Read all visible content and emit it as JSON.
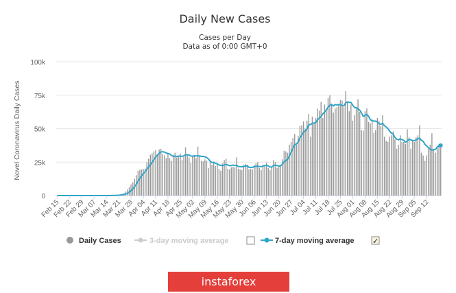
{
  "chart_data": {
    "type": "bar",
    "title": "Daily New Cases",
    "subtitle_line1": "Cases per Day",
    "subtitle_line2": "Data as of 0:00 GMT+0",
    "ylabel": "Novel Coronavirus Daily Cases",
    "xlabel": "",
    "ylim": [
      0,
      100000
    ],
    "y_ticks": [
      0,
      25000,
      50000,
      75000,
      100000
    ],
    "y_tick_labels": [
      "0",
      "25k",
      "50k",
      "75k",
      "100k"
    ],
    "x_tick_labels": [
      "Feb 15",
      "Feb 22",
      "Feb 29",
      "Mar 07",
      "Mar 14",
      "Mar 21",
      "Mar 28",
      "Apr 04",
      "Apr 11",
      "Apr 18",
      "Apr 25",
      "May 02",
      "May 09",
      "May 16",
      "May 23",
      "May 30",
      "Jun 06",
      "Jun 13",
      "Jun 20",
      "Jun 27",
      "Jul 04",
      "Jul 11",
      "Jul 18",
      "Jul 25",
      "Aug 01",
      "Aug 08",
      "Aug 15",
      "Aug 22",
      "Aug 29",
      "Sep 05",
      "Sep 12"
    ],
    "start_label": "Feb 15",
    "days_between_ticks": 7,
    "grid": true,
    "legend_position": "bottom",
    "series": [
      {
        "name": "Daily Cases",
        "kind": "bar",
        "color": "#999999",
        "values": [
          0,
          0,
          0,
          0,
          0,
          0,
          0,
          0,
          0,
          0,
          0,
          0,
          0,
          0,
          0,
          0,
          0,
          0,
          0,
          0,
          0,
          0,
          0,
          0,
          0,
          0,
          0,
          0,
          0,
          100,
          100,
          200,
          200,
          300,
          400,
          600,
          900,
          1200,
          1700,
          3000,
          4500,
          6200,
          8300,
          9900,
          12500,
          15200,
          18500,
          19200,
          19500,
          19900,
          20200,
          25000,
          27500,
          30500,
          31500,
          33000,
          34000,
          30000,
          34500,
          35000,
          31000,
          30000,
          28000,
          31500,
          28000,
          26000,
          30500,
          32000,
          28500,
          30000,
          31500,
          26500,
          29000,
          36000,
          31000,
          28500,
          24500,
          30000,
          29500,
          28000,
          36500,
          30000,
          26000,
          25500,
          27000,
          26000,
          20500,
          25000,
          23000,
          25500,
          22000,
          24000,
          20000,
          18500,
          24000,
          26500,
          27500,
          20000,
          19500,
          21000,
          21500,
          21000,
          28500,
          20000,
          19500,
          19000,
          23000,
          23500,
          23000,
          19500,
          20000,
          19500,
          23000,
          24000,
          25000,
          20500,
          19000,
          23000,
          22500,
          24500,
          20500,
          19000,
          21000,
          26500,
          25000,
          20500,
          21500,
          22500,
          27000,
          33500,
          33000,
          32000,
          38000,
          40000,
          43000,
          46000,
          38000,
          44500,
          52000,
          52500,
          55500,
          50000,
          56000,
          61000,
          44000,
          59000,
          54000,
          58000,
          65000,
          63500,
          70000,
          58000,
          68000,
          65000,
          73000,
          75000,
          68000,
          62000,
          65000,
          66000,
          67500,
          71500,
          71000,
          66000,
          78000,
          70000,
          63000,
          68000,
          56000,
          60000,
          65000,
          72000,
          62500,
          49000,
          48500,
          63000,
          65000,
          55000,
          54000,
          57000,
          47000,
          49000,
          58000,
          55500,
          52000,
          60000,
          44000,
          41000,
          40000,
          44000,
          45000,
          48000,
          42000,
          35000,
          38000,
          45000,
          40000,
          40000,
          38500,
          49500,
          43500,
          35000,
          41000,
          40000,
          43500,
          45000,
          52500,
          32000,
          30000,
          26000,
          30000,
          35000,
          38000,
          46500,
          34500,
          32000,
          37000,
          38500,
          36000
        ]
      },
      {
        "name": "3-day moving average",
        "kind": "line",
        "color": "#cccccc",
        "visible": false
      },
      {
        "name": "7-day moving average",
        "kind": "line",
        "color": "#2fa4c9",
        "visible": true
      }
    ]
  },
  "legend": {
    "daily_cases": "Daily Cases",
    "ma3": "3-day moving average",
    "ma7": "7-day moving average",
    "ma3_checked": false,
    "ma7_checked": true,
    "checkmark": "✓"
  },
  "logo_text": "instaforex"
}
